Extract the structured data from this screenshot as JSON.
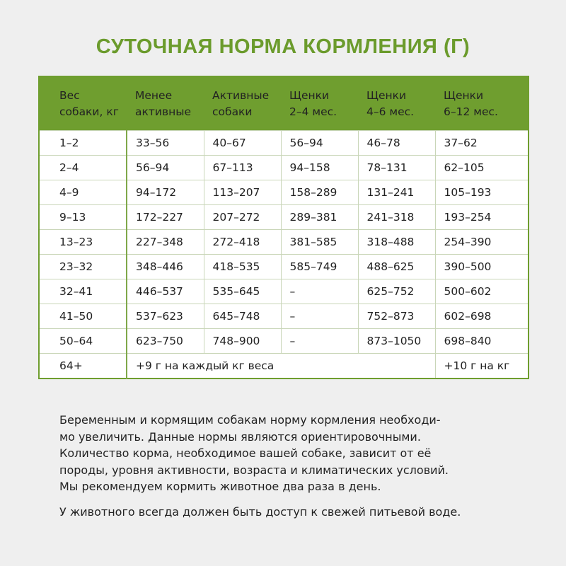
{
  "title": "СУТОЧНАЯ НОРМА КОРМЛЕНИЯ (Г)",
  "table": {
    "header": [
      [
        "Вес",
        "собаки, кг"
      ],
      [
        "Менее",
        "активные"
      ],
      [
        "Активные",
        "собаки"
      ],
      [
        "Щенки",
        "2–4 мес."
      ],
      [
        "Щенки",
        "4–6 мес."
      ],
      [
        "Щенки",
        "6–12 мес."
      ]
    ],
    "rows": [
      [
        "1–2",
        "33–56",
        "40–67",
        "56–94",
        "46–78",
        "37–62"
      ],
      [
        "2–4",
        "56–94",
        "67–113",
        "94–158",
        "78–131",
        "62–105"
      ],
      [
        "4–9",
        "94–172",
        "113–207",
        "158–289",
        "131–241",
        "105–193"
      ],
      [
        "9–13",
        "172–227",
        "207–272",
        "289–381",
        "241–318",
        "193–254"
      ],
      [
        "13–23",
        "227–348",
        "272–418",
        "381–585",
        "318–488",
        "254–390"
      ],
      [
        "23–32",
        "348–446",
        "418–535",
        "585–749",
        "488–625",
        "390–500"
      ],
      [
        "32–41",
        "446–537",
        "535–645",
        "–",
        "625–752",
        "500–602"
      ],
      [
        "41–50",
        "537–623",
        "645–748",
        "–",
        "752–873",
        "602–698"
      ],
      [
        "50–64",
        "623–750",
        "748–900",
        "–",
        "873–1050",
        "698–840"
      ]
    ],
    "last_row": [
      "64+",
      "+9 г на каждый кг веса",
      "+10 г на кг"
    ]
  },
  "notes": [
    [
      "Беременным и кормящим собакам норму кормления необходи-",
      "мо увеличить. Данные нормы являются ориентировочными.",
      "Количество корма, необходимое вашей собаке, зависит от её",
      "породы, уровня активности, возраста и климатических условий.",
      "Мы рекомендуем кормить животное два раза в день."
    ],
    [
      "У животного всегда должен быть доступ к свежей питьевой воде."
    ]
  ]
}
